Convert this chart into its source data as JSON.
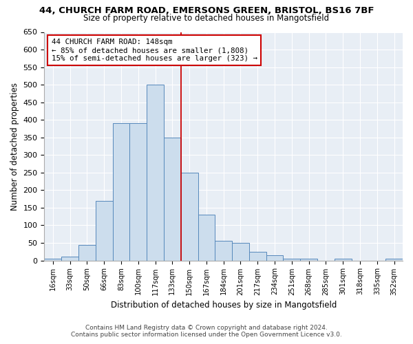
{
  "title1": "44, CHURCH FARM ROAD, EMERSONS GREEN, BRISTOL, BS16 7BF",
  "title2": "Size of property relative to detached houses in Mangotsfield",
  "xlabel": "Distribution of detached houses by size in Mangotsfield",
  "ylabel": "Number of detached properties",
  "categories": [
    "16sqm",
    "33sqm",
    "50sqm",
    "66sqm",
    "83sqm",
    "100sqm",
    "117sqm",
    "133sqm",
    "150sqm",
    "167sqm",
    "184sqm",
    "201sqm",
    "217sqm",
    "234sqm",
    "251sqm",
    "268sqm",
    "285sqm",
    "301sqm",
    "318sqm",
    "335sqm",
    "352sqm"
  ],
  "values": [
    5,
    10,
    45,
    170,
    390,
    390,
    500,
    350,
    250,
    130,
    55,
    50,
    25,
    15,
    5,
    5,
    0,
    5,
    0,
    0,
    5
  ],
  "bar_color": "#ccdded",
  "bar_edge_color": "#5588bb",
  "vline_idx": 8,
  "annotation_text": "44 CHURCH FARM ROAD: 148sqm\n← 85% of detached houses are smaller (1,808)\n15% of semi-detached houses are larger (323) →",
  "ylim": [
    0,
    650
  ],
  "yticks": [
    0,
    50,
    100,
    150,
    200,
    250,
    300,
    350,
    400,
    450,
    500,
    550,
    600,
    650
  ],
  "footer1": "Contains HM Land Registry data © Crown copyright and database right 2024.",
  "footer2": "Contains public sector information licensed under the Open Government Licence v3.0.",
  "bg_color": "#e8eef5"
}
